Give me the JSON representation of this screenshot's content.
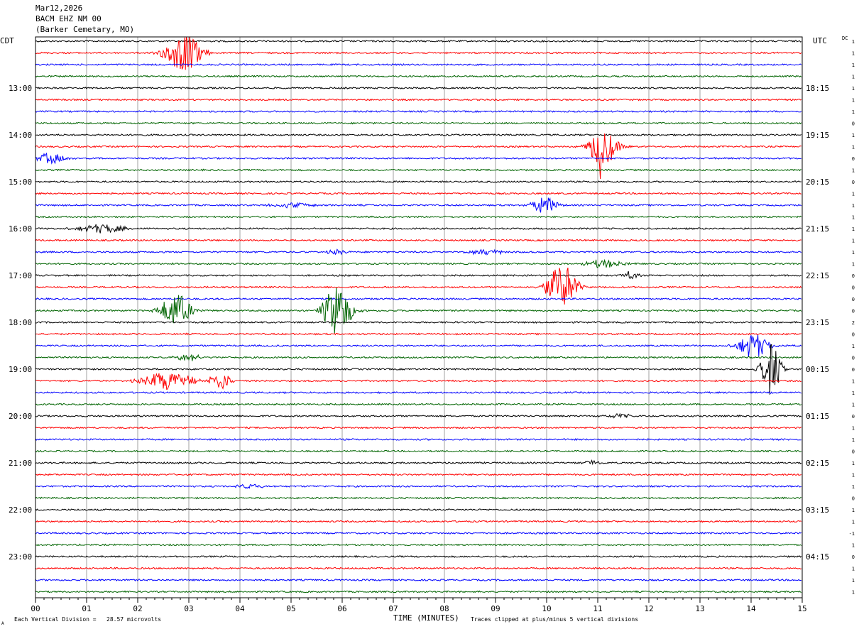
{
  "header": {
    "date": "Mar12,2026",
    "station": "BACM EHZ NM 00",
    "location": "(Barker Cemetary, MO)"
  },
  "labels": {
    "left_tz": "CDT",
    "right_tz": "UTC",
    "dc_label": "DC",
    "xlabel": "TIME (MINUTES)",
    "scale_note": "Each Vertical Division =   28.57 microvolts",
    "clip_note": "Traces clipped at plus/minus 5 vertical divisions",
    "corner_mark": "A"
  },
  "colors": {
    "trace_cycle": [
      "#000000",
      "#ff0000",
      "#0000ff",
      "#006400"
    ],
    "grid": "#a0a0a0",
    "frame": "#000000"
  },
  "chart_data": {
    "type": "line",
    "title": "",
    "x_range_minutes": [
      0,
      15
    ],
    "x_ticks": [
      "00",
      "01",
      "02",
      "03",
      "04",
      "05",
      "06",
      "07",
      "08",
      "09",
      "10",
      "11",
      "12",
      "13",
      "14",
      "15"
    ],
    "trace_count": 48,
    "left_hour_labels": [
      "13:00",
      "14:00",
      "15:00",
      "16:00",
      "17:00",
      "18:00",
      "19:00",
      "20:00",
      "21:00",
      "22:00",
      "23:00"
    ],
    "right_hour_labels": [
      "18:15",
      "19:15",
      "20:15",
      "21:15",
      "22:15",
      "23:15",
      "00:15",
      "01:15",
      "02:15",
      "03:15",
      "04:15"
    ],
    "dc_offsets": [
      "1",
      "1",
      "1",
      "1",
      "1",
      "1",
      "1",
      "0",
      "1",
      "1",
      "0",
      "1",
      "0",
      "1",
      "1",
      "1",
      "1",
      "1",
      "1",
      "1",
      "0",
      "0",
      "0",
      "0",
      "2",
      "0",
      "1",
      "0",
      "0",
      "1",
      "1",
      "1",
      "0",
      "1",
      "1",
      "0",
      "1",
      "1",
      "1",
      "0",
      "1",
      "1",
      "-1",
      "1",
      "0",
      "1",
      "1",
      "1"
    ],
    "events": [
      {
        "trace": 1,
        "minute": 2.9,
        "amp": 3.2,
        "dur": 0.75
      },
      {
        "trace": 9,
        "minute": 11.1,
        "amp": 3.4,
        "dur": 0.55
      },
      {
        "trace": 9,
        "minute": 11.05,
        "amp": 5.0,
        "dur": 0.05
      },
      {
        "trace": 10,
        "minute": 0.3,
        "amp": 0.9,
        "dur": 0.6
      },
      {
        "trace": 14,
        "minute": 9.95,
        "amp": 1.5,
        "dur": 0.5
      },
      {
        "trace": 14,
        "minute": 5.0,
        "amp": 0.4,
        "dur": 1.0
      },
      {
        "trace": 16,
        "minute": 1.3,
        "amp": 0.8,
        "dur": 0.9
      },
      {
        "trace": 18,
        "minute": 8.8,
        "amp": 0.5,
        "dur": 0.7
      },
      {
        "trace": 18,
        "minute": 5.9,
        "amp": 0.4,
        "dur": 0.4
      },
      {
        "trace": 19,
        "minute": 11.1,
        "amp": 0.7,
        "dur": 0.8
      },
      {
        "trace": 20,
        "minute": 11.65,
        "amp": 0.7,
        "dur": 0.3
      },
      {
        "trace": 21,
        "minute": 10.3,
        "amp": 3.9,
        "dur": 0.6
      },
      {
        "trace": 23,
        "minute": 2.75,
        "amp": 3.0,
        "dur": 0.6
      },
      {
        "trace": 23,
        "minute": 5.9,
        "amp": 4.5,
        "dur": 0.55
      },
      {
        "trace": 26,
        "minute": 14.05,
        "amp": 2.2,
        "dur": 0.6
      },
      {
        "trace": 27,
        "minute": 3.0,
        "amp": 0.6,
        "dur": 0.5
      },
      {
        "trace": 28,
        "minute": 14.4,
        "amp": 4.5,
        "dur": 0.4
      },
      {
        "trace": 29,
        "minute": 2.6,
        "amp": 1.6,
        "dur": 1.0
      },
      {
        "trace": 29,
        "minute": 3.6,
        "amp": 1.7,
        "dur": 0.4
      },
      {
        "trace": 32,
        "minute": 11.4,
        "amp": 0.4,
        "dur": 0.5
      },
      {
        "trace": 36,
        "minute": 10.9,
        "amp": 0.5,
        "dur": 0.3
      },
      {
        "trace": 38,
        "minute": 4.2,
        "amp": 0.5,
        "dur": 0.5
      }
    ]
  }
}
